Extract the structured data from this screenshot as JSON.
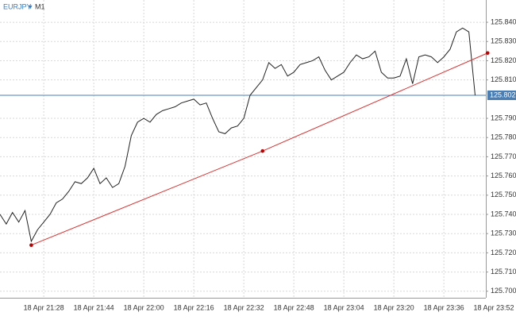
{
  "chart_data": {
    "type": "line",
    "title": "EURJPY",
    "timeframe": "M1",
    "categories": [
      null,
      null,
      null,
      null,
      null,
      null,
      null,
      "18 Apr 21:28",
      null,
      null,
      null,
      null,
      null,
      null,
      null,
      "18 Apr 21:44",
      null,
      null,
      null,
      null,
      null,
      null,
      null,
      "18 Apr 22:00",
      null,
      null,
      null,
      null,
      null,
      null,
      null,
      "18 Apr 22:16",
      null,
      null,
      null,
      null,
      null,
      null,
      null,
      "18 Apr 22:32",
      null,
      null,
      null,
      null,
      null,
      null,
      null,
      "18 Apr 22:48",
      null,
      null,
      null,
      null,
      null,
      null,
      null,
      "18 Apr 23:04",
      null,
      null,
      null,
      null,
      null,
      null,
      null,
      "18 Apr 23:20",
      null,
      null,
      null,
      null,
      null,
      null,
      null,
      "18 Apr 23:36",
      null,
      null,
      null,
      null,
      null,
      null,
      null,
      "18 Apr 23:52"
    ],
    "series": [
      {
        "name": "EURJPY",
        "color": "#222222",
        "values": [
          125.74,
          125.735,
          125.741,
          125.736,
          125.742,
          125.726,
          125.732,
          125.736,
          125.74,
          125.746,
          125.748,
          125.752,
          125.757,
          125.756,
          125.759,
          125.764,
          125.756,
          125.759,
          125.754,
          125.756,
          125.765,
          125.781,
          125.788,
          125.79,
          125.788,
          125.792,
          125.794,
          125.795,
          125.796,
          125.798,
          125.799,
          125.8,
          125.797,
          125.798,
          125.79,
          125.783,
          125.782,
          125.785,
          125.786,
          125.79,
          125.802,
          125.806,
          125.81,
          125.819,
          125.816,
          125.818,
          125.812,
          125.814,
          125.818,
          125.819,
          125.82,
          125.822,
          125.815,
          125.81,
          125.812,
          125.814,
          125.819,
          125.823,
          125.821,
          125.822,
          125.825,
          125.814,
          125.811,
          125.811,
          125.812,
          125.821,
          125.808,
          125.822,
          125.823,
          125.822,
          125.819,
          125.822,
          125.826,
          125.835,
          125.837,
          125.835,
          125.802,
          null,
          null,
          null
        ]
      }
    ],
    "trend_line": {
      "color": "#e03030",
      "x": [
        5,
        42,
        78
      ],
      "values": [
        125.724,
        125.773,
        125.824
      ]
    },
    "bid_line": {
      "value": 125.802,
      "color": "#4a7fb5"
    },
    "ylim": [
      125.6966,
      125.8516
    ],
    "yticks": [
      {
        "value": 125.84,
        "label": "125.840"
      },
      {
        "value": 125.83,
        "label": "125.830"
      },
      {
        "value": 125.82,
        "label": "125.820"
      },
      {
        "value": 125.81,
        "label": "125.810"
      },
      {
        "value": 125.79,
        "label": "125.790"
      },
      {
        "value": 125.78,
        "label": "125.780"
      },
      {
        "value": 125.77,
        "label": "125.770"
      },
      {
        "value": 125.76,
        "label": "125.760"
      },
      {
        "value": 125.75,
        "label": "125.750"
      },
      {
        "value": 125.74,
        "label": "125.740"
      },
      {
        "value": 125.73,
        "label": "125.730"
      },
      {
        "value": 125.72,
        "label": "125.720"
      },
      {
        "value": 125.71,
        "label": "125.710"
      },
      {
        "value": 125.7,
        "label": "125.700"
      }
    ],
    "grid": true
  }
}
